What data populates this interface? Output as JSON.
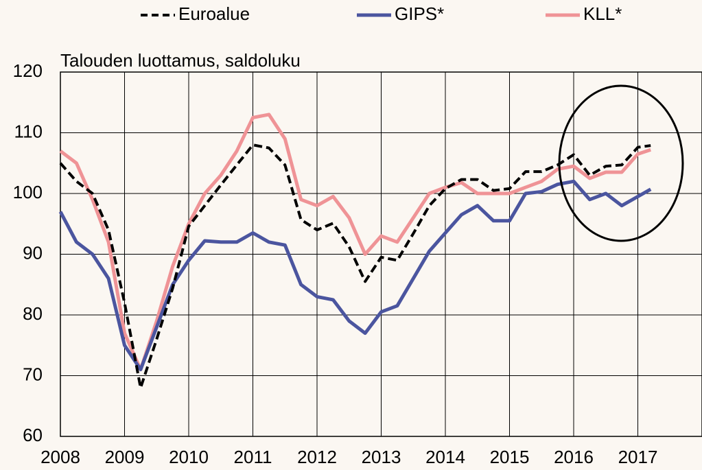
{
  "chart_data": {
    "type": "line",
    "ylabel": "Talouden luottamus, saldoluku",
    "x": [
      2008,
      2008.25,
      2008.5,
      2008.75,
      2009,
      2009.25,
      2009.5,
      2009.75,
      2010,
      2010.25,
      2010.5,
      2010.75,
      2011,
      2011.25,
      2011.5,
      2011.75,
      2012,
      2012.25,
      2012.5,
      2012.75,
      2013,
      2013.25,
      2013.5,
      2013.75,
      2014,
      2014.25,
      2014.5,
      2014.75,
      2015,
      2015.25,
      2015.5,
      2015.75,
      2016,
      2016.25,
      2016.5,
      2016.75,
      2017,
      2017.2
    ],
    "series": [
      {
        "name": "Euroalue",
        "color": "#000000",
        "dash": true,
        "values": [
          105,
          102,
          100,
          94,
          82,
          68,
          76,
          84.4,
          94.6,
          98,
          101.4,
          104.7,
          108,
          107.5,
          104.7,
          95.7,
          94,
          95.1,
          91.2,
          85.5,
          89.5,
          89,
          93.4,
          98,
          100.8,
          102.3,
          102.3,
          100.5,
          100.8,
          103.6,
          103.6,
          104.7,
          106.4,
          103,
          104.5,
          104.7,
          107.6,
          107.9
        ]
      },
      {
        "name": "GIPS*",
        "color": "#4b559f",
        "dash": false,
        "values": [
          97,
          92,
          90,
          86,
          75,
          71,
          78,
          85,
          89,
          92.2,
          92,
          92,
          93.5,
          92,
          91.5,
          85,
          83,
          82.5,
          79,
          77,
          80.5,
          81.5,
          86,
          90.5,
          93.5,
          96.5,
          98,
          95.5,
          95.5,
          100,
          100.3,
          101.5,
          102,
          99,
          100,
          98,
          99.5,
          100.7
        ]
      },
      {
        "name": "KLL*",
        "color": "#ef9396",
        "dash": false,
        "values": [
          107,
          105,
          99,
          92,
          77,
          71,
          79,
          88,
          95,
          100,
          103,
          107,
          112.5,
          113,
          109,
          99,
          98,
          99.5,
          96,
          90,
          93,
          92,
          96,
          100,
          101,
          101.8,
          100,
          100,
          100,
          101,
          102,
          104,
          104.5,
          102.5,
          103.5,
          103.5,
          106.5,
          107.2
        ]
      }
    ],
    "xlim": [
      2008,
      2018
    ],
    "xticks": [
      2008,
      2009,
      2010,
      2011,
      2012,
      2013,
      2014,
      2015,
      2016,
      2017
    ],
    "ylim": [
      60,
      120
    ],
    "yticks": [
      60,
      70,
      80,
      90,
      100,
      110,
      120
    ],
    "grid": true
  }
}
